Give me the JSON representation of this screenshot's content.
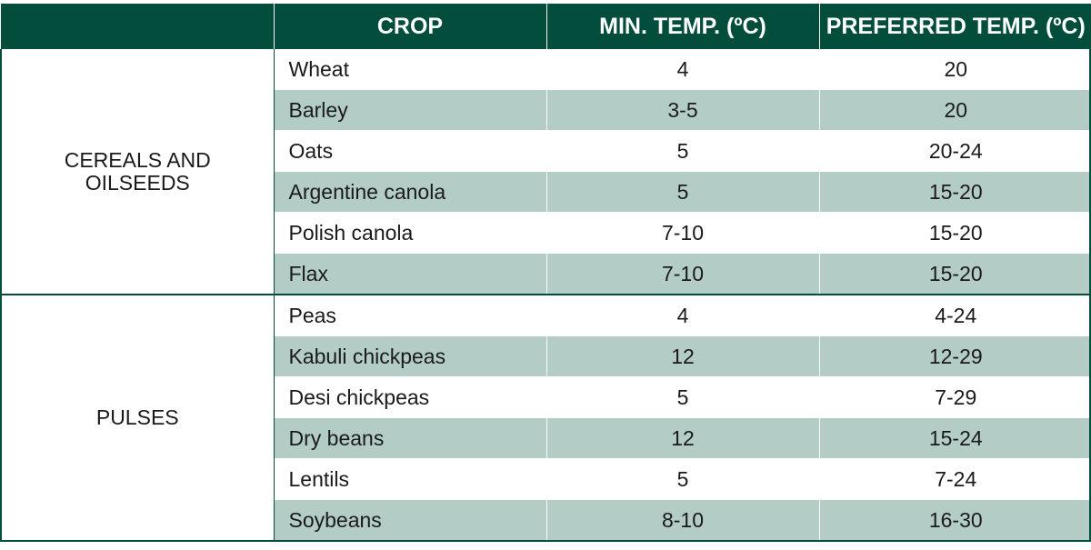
{
  "header": {
    "blank": "",
    "crop": "CROP",
    "min_temp": "MIN. TEMP. (ºC)",
    "preferred_temp": "PREFERRED TEMP. (ºC)"
  },
  "groups": [
    {
      "name_line1": "CEREALS AND",
      "name_line2": "OILSEEDS",
      "rows": [
        {
          "crop": "Wheat",
          "min": "4",
          "preferred": "20"
        },
        {
          "crop": "Barley",
          "min": "3-5",
          "preferred": "20"
        },
        {
          "crop": "Oats",
          "min": "5",
          "preferred": "20-24"
        },
        {
          "crop": "Argentine canola",
          "min": "5",
          "preferred": "15-20"
        },
        {
          "crop": "Polish canola",
          "min": "7-10",
          "preferred": "15-20"
        },
        {
          "crop": "Flax",
          "min": "7-10",
          "preferred": "15-20"
        }
      ]
    },
    {
      "name_line1": "PULSES",
      "name_line2": "",
      "rows": [
        {
          "crop": "Peas",
          "min": "4",
          "preferred": "4-24"
        },
        {
          "crop": "Kabuli chickpeas",
          "min": "12",
          "preferred": "12-29"
        },
        {
          "crop": "Desi chickpeas",
          "min": "5",
          "preferred": "7-29"
        },
        {
          "crop": "Dry beans",
          "min": "12",
          "preferred": "15-24"
        },
        {
          "crop": "Lentils",
          "min": "5",
          "preferred": "7-24"
        },
        {
          "crop": "Soybeans",
          "min": "8-10",
          "preferred": "16-30"
        }
      ]
    }
  ],
  "colors": {
    "header_bg": "#024d3c",
    "shade_row": "#b3ccc6"
  }
}
